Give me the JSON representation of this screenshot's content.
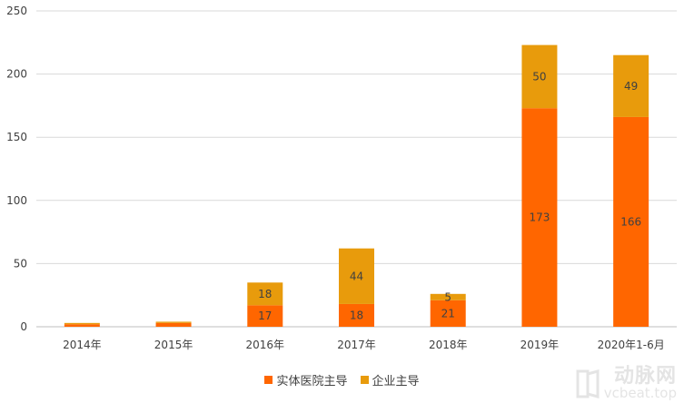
{
  "chart_data": {
    "type": "bar",
    "stacked": true,
    "categories": [
      "2014年",
      "2015年",
      "2016年",
      "2017年",
      "2018年",
      "2019年",
      "2020年1-6月"
    ],
    "series": [
      {
        "name": "实体医院主导",
        "color": "#ff6600",
        "values": [
          2,
          3,
          17,
          18,
          21,
          173,
          166
        ],
        "labels": [
          "",
          "",
          "17",
          "18",
          "21",
          "173",
          "166"
        ]
      },
      {
        "name": "企业主导",
        "color": "#e89b0c",
        "values": [
          1,
          1,
          18,
          44,
          5,
          50,
          49
        ],
        "labels": [
          "",
          "",
          "18",
          "44",
          "5",
          "50",
          "49"
        ]
      }
    ],
    "yticks": [
      "0",
      "50",
      "100",
      "150",
      "200",
      "250"
    ],
    "ylim": [
      0,
      250
    ],
    "grid": true,
    "legend_position": "bottom"
  },
  "watermark": {
    "text": "动脉网",
    "url": "vcbeat.top"
  }
}
